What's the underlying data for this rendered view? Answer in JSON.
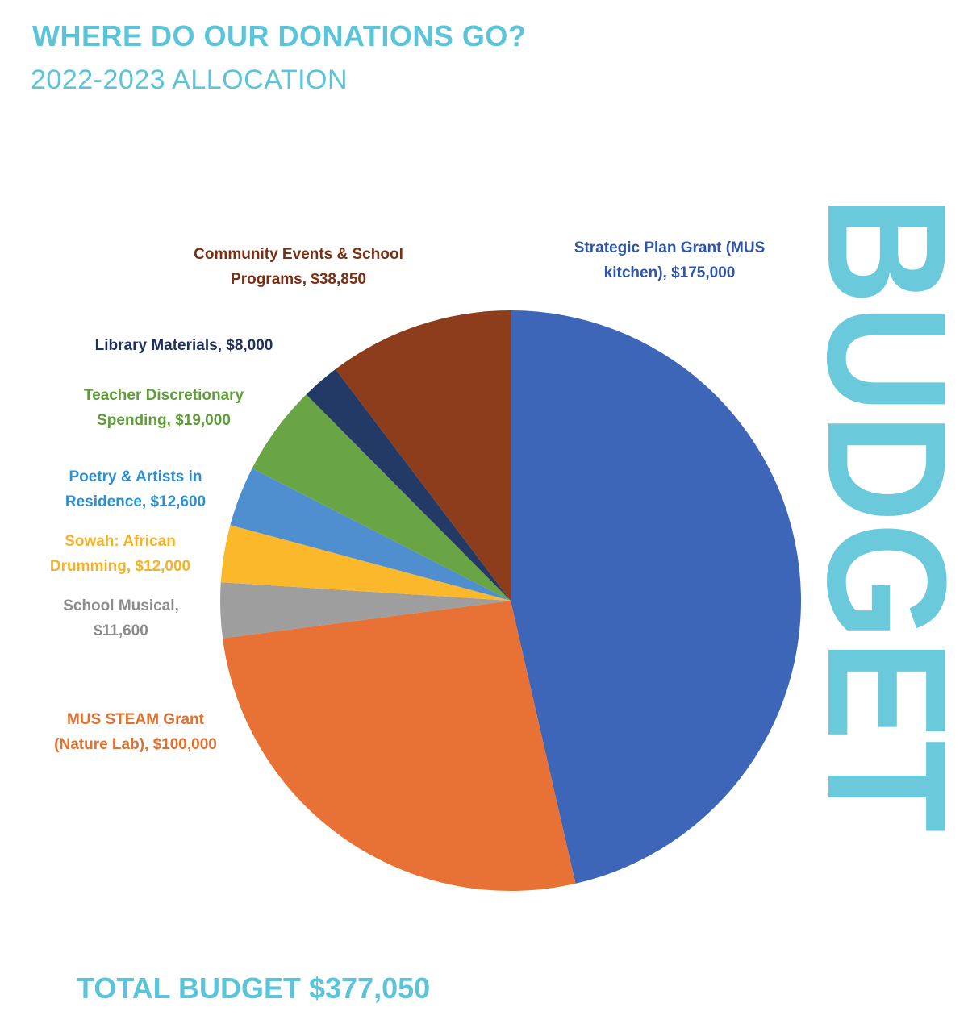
{
  "header": {
    "title": "WHERE DO OUR DONATIONS GO?",
    "subtitle": "2022-2023 ALLOCATION"
  },
  "side_word": "BUDGET",
  "footer": {
    "total": "TOTAL BUDGET $377,050"
  },
  "chart_data": {
    "type": "pie",
    "title": "WHERE DO OUR DONATIONS GO?",
    "subtitle": "2022-2023 ALLOCATION",
    "total_label": "TOTAL BUDGET $377,050",
    "slices": [
      {
        "name": "Strategic Plan Grant (MUS kitchen)",
        "value": 175000,
        "color": "#3d66b8",
        "label_lines": [
          "Strategic Plan Grant (MUS",
          "kitchen), $175,000"
        ],
        "label_color": "#2f55a8"
      },
      {
        "name": "MUS STEAM Grant (Nature Lab)",
        "value": 100000,
        "color": "#e87236",
        "label_lines": [
          "MUS STEAM Grant",
          "(Nature Lab), $100,000"
        ],
        "label_color": "#e0702e"
      },
      {
        "name": "School Musical",
        "value": 11600,
        "color": "#9e9e9e",
        "label_lines": [
          "School Musical,",
          "$11,600"
        ],
        "label_color": "#8c8c8c"
      },
      {
        "name": "Sowah: African Drumming",
        "value": 12000,
        "color": "#fbb82b",
        "label_lines": [
          "Sowah: African",
          "Drumming, $12,000"
        ],
        "label_color": "#f5b324"
      },
      {
        "name": "Poetry & Artists in Residence",
        "value": 12600,
        "color": "#4f8fcf",
        "label_lines": [
          "Poetry & Artists in",
          "Residence, $12,600"
        ],
        "label_color": "#2e8fd0"
      },
      {
        "name": "Teacher Discretionary Spending",
        "value": 19000,
        "color": "#6aa545",
        "label_lines": [
          "Teacher Discretionary",
          "Spending, $19,000"
        ],
        "label_color": "#5f9c3a"
      },
      {
        "name": "Library Materials",
        "value": 8000,
        "color": "#233a66",
        "label_lines": [
          "Library Materials, $8,000"
        ],
        "label_color": "#1f2f5c"
      },
      {
        "name": "Community Events & School Programs",
        "value": 38850,
        "color": "#8d3c1c",
        "label_lines": [
          "Community Events & School",
          "Programs, $38,850"
        ],
        "label_color": "#7a2e12"
      }
    ]
  }
}
